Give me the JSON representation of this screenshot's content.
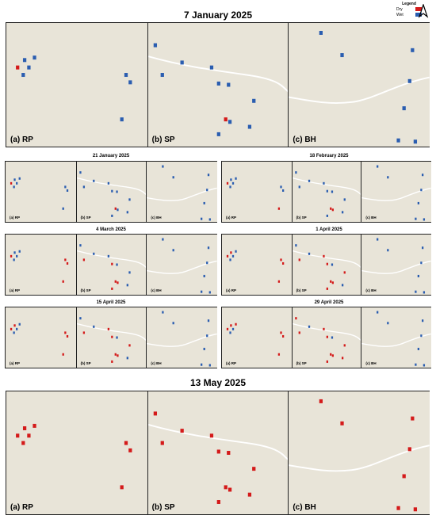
{
  "legend": {
    "title": "Legend",
    "items": [
      {
        "label": "Dry",
        "color": "#d41a1a"
      },
      {
        "label": "Wet",
        "color": "#2a5db0"
      }
    ],
    "north_icon": "north-arrow-icon"
  },
  "colors": {
    "background": "#e8e4d8",
    "road": "#ffffff",
    "dry": "#d41a1a",
    "wet": "#2a5db0"
  },
  "panel_labels": [
    "(a) RP",
    "(b) SP",
    "(c) BH"
  ],
  "maps": [
    {
      "date": "7 January 2025"
    },
    {
      "date": "21 January 2025"
    },
    {
      "date": "18 February 2025"
    },
    {
      "date": "4 March 2025"
    },
    {
      "date": "1 April 2025"
    },
    {
      "date": "15 April 2025"
    },
    {
      "date": "29 April 2025"
    },
    {
      "date": "13 May 2025"
    }
  ]
}
